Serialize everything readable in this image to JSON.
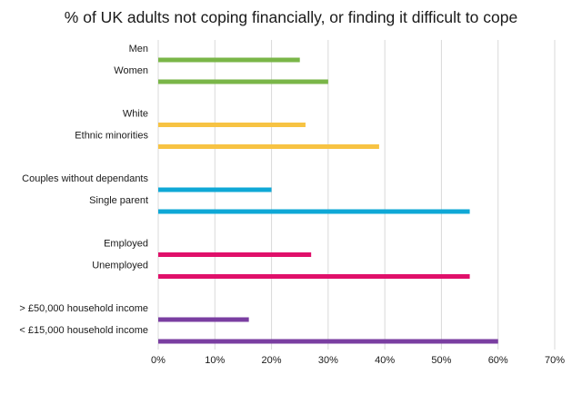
{
  "chart_data": {
    "type": "bar",
    "orientation": "horizontal",
    "title": "% of UK adults not coping financially, or finding it difficult to cope",
    "xlabel": "",
    "ylabel": "",
    "xlim": [
      0,
      70
    ],
    "x_ticks": [
      "0%",
      "10%",
      "20%",
      "30%",
      "40%",
      "50%",
      "60%",
      "70%"
    ],
    "grid": "vertical",
    "legend": "none",
    "groups": [
      {
        "color": "#7ab648",
        "bars": [
          {
            "category": "Men",
            "value": 25
          },
          {
            "category": "Women",
            "value": 30
          }
        ]
      },
      {
        "color": "#f7c343",
        "bars": [
          {
            "category": "White",
            "value": 26
          },
          {
            "category": "Ethnic minorities",
            "value": 39
          }
        ]
      },
      {
        "color": "#0fa8d6",
        "bars": [
          {
            "category": "Couples without dependants",
            "value": 20
          },
          {
            "category": "Single parent",
            "value": 55
          }
        ]
      },
      {
        "color": "#e0106a",
        "bars": [
          {
            "category": "Employed",
            "value": 27
          },
          {
            "category": "Unemployed",
            "value": 55
          }
        ]
      },
      {
        "color": "#7a3ea1",
        "bars": [
          {
            "category": "> £50,000 household income",
            "value": 16
          },
          {
            "category": "< £15,000 household income",
            "value": 60
          }
        ]
      }
    ]
  }
}
